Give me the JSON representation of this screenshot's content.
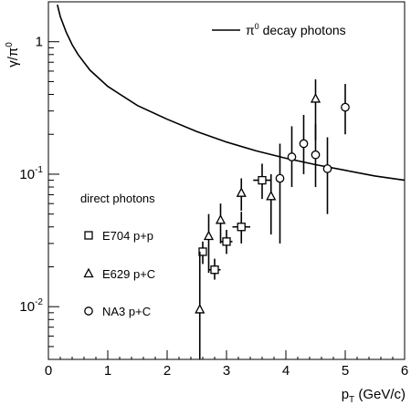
{
  "chart_data": {
    "type": "scatter",
    "title": "",
    "xlabel_main": "p",
    "xlabel_sub": "T",
    "xlabel_unit": " (GeV/c)",
    "ylabel_main": "γ/π",
    "ylabel_sup": "0",
    "x_range": [
      0,
      6
    ],
    "y_range": [
      0.004,
      2
    ],
    "y_scale": "log",
    "x_ticks": [
      "0",
      "1",
      "2",
      "3",
      "4",
      "5",
      "6"
    ],
    "y_tick_labels": [
      {
        "value": 1,
        "base": "1",
        "exp": ""
      },
      {
        "value": 0.1,
        "base": "10",
        "exp": "-1"
      },
      {
        "value": 0.01,
        "base": "10",
        "exp": "-2"
      }
    ],
    "grid": false,
    "legend_position": "top-right and left",
    "curve": {
      "name_main": "π",
      "name_sup": "0",
      "name_rest": " decay photons",
      "x": [
        0.15,
        0.2,
        0.3,
        0.4,
        0.5,
        0.7,
        1.0,
        1.5,
        2.0,
        2.5,
        3.0,
        3.5,
        4.0,
        4.5,
        5.0,
        5.5,
        6.0
      ],
      "y": [
        1.9,
        1.55,
        1.18,
        0.95,
        0.8,
        0.61,
        0.46,
        0.33,
        0.26,
        0.21,
        0.175,
        0.15,
        0.132,
        0.118,
        0.107,
        0.097,
        0.09
      ]
    },
    "legend_heading": "direct photons",
    "series": [
      {
        "name": "E704 p+p",
        "marker": "square",
        "points": [
          {
            "x": 2.6,
            "y": 0.026,
            "ylo": 0.021,
            "yhi": 0.031,
            "xerr": 0.05
          },
          {
            "x": 2.8,
            "y": 0.019,
            "ylo": 0.016,
            "yhi": 0.023,
            "xerr": 0.1
          },
          {
            "x": 3.0,
            "y": 0.031,
            "ylo": 0.025,
            "yhi": 0.038,
            "xerr": 0.1
          },
          {
            "x": 3.25,
            "y": 0.04,
            "ylo": 0.03,
            "yhi": 0.052,
            "xerr": 0.15
          },
          {
            "x": 3.6,
            "y": 0.09,
            "ylo": 0.065,
            "yhi": 0.12,
            "xerr": 0.15
          }
        ]
      },
      {
        "name": "E629 p+C",
        "marker": "triangle",
        "points": [
          {
            "x": 2.55,
            "y": 0.0095,
            "ylo": 0.001,
            "yhi": 0.026
          },
          {
            "x": 2.7,
            "y": 0.034,
            "ylo": 0.018,
            "yhi": 0.05
          },
          {
            "x": 2.9,
            "y": 0.045,
            "ylo": 0.03,
            "yhi": 0.06
          },
          {
            "x": 3.25,
            "y": 0.072,
            "ylo": 0.053,
            "yhi": 0.093
          },
          {
            "x": 3.75,
            "y": 0.068,
            "ylo": 0.035,
            "yhi": 0.1
          },
          {
            "x": 4.5,
            "y": 0.37,
            "ylo": 0.18,
            "yhi": 0.52
          }
        ]
      },
      {
        "name": "NA3 p+C",
        "marker": "circle",
        "points": [
          {
            "x": 3.9,
            "y": 0.093,
            "ylo": 0.03,
            "yhi": 0.17
          },
          {
            "x": 4.1,
            "y": 0.135,
            "ylo": 0.08,
            "yhi": 0.23
          },
          {
            "x": 4.3,
            "y": 0.17,
            "ylo": 0.1,
            "yhi": 0.28
          },
          {
            "x": 4.5,
            "y": 0.14,
            "ylo": 0.08,
            "yhi": 0.24
          },
          {
            "x": 4.7,
            "y": 0.11,
            "ylo": 0.05,
            "yhi": 0.19
          },
          {
            "x": 5.0,
            "y": 0.32,
            "ylo": 0.2,
            "yhi": 0.48
          }
        ]
      }
    ]
  }
}
